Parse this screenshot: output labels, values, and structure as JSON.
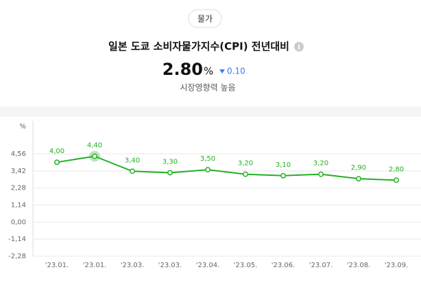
{
  "header": {
    "tag": "물가",
    "title": "일본 도쿄 소비자물가지수(CPI) 전년대비",
    "value": "2.80",
    "unit": "%",
    "change": "0.10",
    "impact": "시장영향력 높음"
  },
  "chart_data": {
    "type": "line",
    "y_label": "%",
    "categories": [
      "'23.01.",
      "'23.01.",
      "'23.03.",
      "'23.03.",
      "'23.04.",
      "'23.05.",
      "'23.06.",
      "'23.07.",
      "'23.08.",
      "'23.09."
    ],
    "values": [
      4.0,
      4.4,
      3.4,
      3.3,
      3.5,
      3.2,
      3.1,
      3.2,
      2.9,
      2.8
    ],
    "value_labels": [
      "4,00",
      "4,40",
      "3,40",
      "3,30",
      "3,50",
      "3,20",
      "3,10",
      "3,20",
      "2,90",
      "2,80"
    ],
    "color": "#22b021",
    "highlight": 1,
    "ylim": [
      -2.28,
      4.56
    ],
    "yticks": [
      {
        "value": 4.56,
        "label": "4,56"
      },
      {
        "value": 3.42,
        "label": "3,42"
      },
      {
        "value": 2.28,
        "label": "2,28"
      },
      {
        "value": 1.14,
        "label": "1,14"
      },
      {
        "value": 0,
        "label": "0,00"
      },
      {
        "value": -1.14,
        "label": "-1,14"
      },
      {
        "value": -2.28,
        "label": "-2,28"
      }
    ],
    "grid": true
  }
}
